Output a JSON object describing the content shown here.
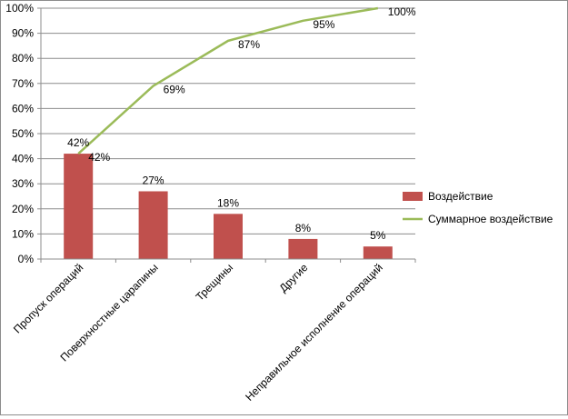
{
  "chart_data": {
    "type": "bar",
    "categories": [
      "Пропуск операций",
      "Поверхностные царапины",
      "Трещины",
      "Другие",
      "Неправильное исполнение операций"
    ],
    "series": [
      {
        "name": "Воздействие",
        "type": "bar",
        "color": "#c0504d",
        "values": [
          42,
          27,
          18,
          8,
          5
        ],
        "labels": [
          "42%",
          "27%",
          "18%",
          "8%",
          "5%"
        ]
      },
      {
        "name": "Суммарное воздействие",
        "type": "line",
        "color": "#9bbb59",
        "values": [
          42,
          69,
          87,
          95,
          100
        ],
        "labels": [
          "42%",
          "69%",
          "87%",
          "95%",
          "100%"
        ]
      }
    ],
    "yticks": [
      "0%",
      "10%",
      "20%",
      "30%",
      "40%",
      "50%",
      "60%",
      "70%",
      "80%",
      "90%",
      "100%"
    ],
    "ylim": [
      0,
      100
    ],
    "grid": true,
    "legend": "right"
  }
}
